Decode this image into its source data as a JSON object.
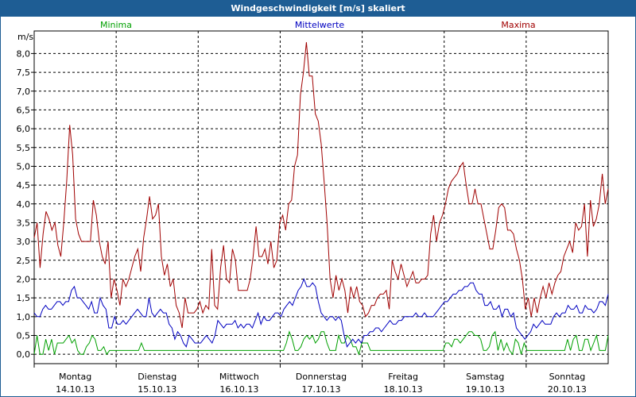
{
  "window_title": "Windgeschwindigkeit [m/s] skaliert",
  "chart_data": {
    "type": "line",
    "ylabel": "m/s",
    "ylim": [
      -0.25,
      8.6
    ],
    "yticks": [
      "0,0",
      "0,5",
      "1,0",
      "1,5",
      "2,0",
      "2,5",
      "3,0",
      "3,5",
      "4,0",
      "4,5",
      "5,0",
      "5,5",
      "6,0",
      "6,5",
      "7,0",
      "7,5",
      "8,0"
    ],
    "xlim": [
      0,
      7
    ],
    "grid": true,
    "legend_placement": "top",
    "days": [
      {
        "weekday": "Montag",
        "date": "14.10.13"
      },
      {
        "weekday": "Dienstag",
        "date": "15.10.13"
      },
      {
        "weekday": "Mittwoch",
        "date": "16.10.13"
      },
      {
        "weekday": "Donnerstag",
        "date": "17.10.13"
      },
      {
        "weekday": "Freitag",
        "date": "18.10.13"
      },
      {
        "weekday": "Samstag",
        "date": "19.10.13"
      },
      {
        "weekday": "Sonntag",
        "date": "20.10.13"
      }
    ],
    "series": [
      {
        "name": "Minima",
        "color": "#00a000",
        "values": [
          0.0,
          0.5,
          0.0,
          0.0,
          0.4,
          0.1,
          0.4,
          0.0,
          0.3,
          0.3,
          0.3,
          0.4,
          0.5,
          0.3,
          0.4,
          0.1,
          0.0,
          0.0,
          0.2,
          0.3,
          0.5,
          0.4,
          0.1,
          0.1,
          0.2,
          0.0,
          0.1,
          0.1,
          0.1,
          0.1,
          0.1,
          0.1,
          0.1,
          0.1,
          0.1,
          0.1,
          0.1,
          0.3,
          0.1,
          0.1,
          0.1,
          0.1,
          0.1,
          0.1,
          0.1,
          0.1,
          0.1,
          0.1,
          0.1,
          0.1,
          0.1,
          0.1,
          0.1,
          0.1,
          0.1,
          0.1,
          0.1,
          0.1,
          0.1,
          0.1,
          0.1,
          0.1,
          0.1,
          0.1,
          0.1,
          0.1,
          0.1,
          0.1,
          0.1,
          0.1,
          0.1,
          0.1,
          0.1,
          0.1,
          0.1,
          0.1,
          0.1,
          0.1,
          0.1,
          0.1,
          0.1,
          0.1,
          0.1,
          0.1,
          0.1,
          0.1,
          0.1,
          0.3,
          0.6,
          0.4,
          0.1,
          0.1,
          0.2,
          0.4,
          0.5,
          0.4,
          0.5,
          0.3,
          0.4,
          0.6,
          0.6,
          0.3,
          0.1,
          0.1,
          0.1,
          0.5,
          0.3,
          0.3,
          0.5,
          0.4,
          0.2,
          0.2,
          0.0,
          0.3,
          0.3,
          0.3,
          0.1,
          0.1,
          0.1,
          0.1,
          0.1,
          0.1,
          0.1,
          0.1,
          0.1,
          0.1,
          0.1,
          0.1,
          0.1,
          0.1,
          0.1,
          0.1,
          0.1,
          0.1,
          0.1,
          0.1,
          0.1,
          0.1,
          0.1,
          0.1,
          0.1,
          0.1,
          0.3,
          0.3,
          0.2,
          0.4,
          0.4,
          0.3,
          0.4,
          0.5,
          0.6,
          0.6,
          0.5,
          0.5,
          0.4,
          0.1,
          0.1,
          0.2,
          0.5,
          0.6,
          0.1,
          0.4,
          0.1,
          0.3,
          0.1,
          0.0,
          0.4,
          0.3,
          0.0,
          0.3,
          0.1,
          0.1,
          0.1,
          0.1,
          0.1,
          0.1,
          0.1,
          0.1,
          0.1,
          0.1,
          0.1,
          0.1,
          0.1,
          0.1,
          0.4,
          0.1,
          0.4,
          0.5,
          0.1,
          0.1,
          0.4,
          0.4,
          0.1,
          0.3,
          0.5,
          0.1,
          0.1,
          0.1,
          0.5
        ]
      },
      {
        "name": "Mittelwerte",
        "color": "#0000c0",
        "values": [
          1.1,
          1.0,
          1.0,
          1.2,
          1.3,
          1.2,
          1.2,
          1.3,
          1.4,
          1.4,
          1.3,
          1.4,
          1.4,
          1.7,
          1.8,
          1.5,
          1.5,
          1.4,
          1.3,
          1.2,
          1.4,
          1.1,
          1.1,
          1.5,
          1.3,
          1.2,
          0.7,
          0.7,
          1.0,
          0.8,
          0.8,
          0.9,
          0.8,
          0.9,
          1.0,
          1.1,
          1.2,
          1.1,
          1.0,
          1.0,
          1.5,
          1.1,
          1.0,
          1.1,
          1.2,
          1.1,
          1.1,
          0.8,
          0.7,
          0.4,
          0.6,
          0.5,
          0.3,
          0.2,
          0.5,
          0.4,
          0.3,
          0.3,
          0.3,
          0.4,
          0.5,
          0.4,
          0.3,
          0.5,
          0.9,
          0.8,
          0.7,
          0.8,
          0.8,
          0.8,
          0.9,
          0.7,
          0.8,
          0.7,
          0.8,
          0.8,
          0.7,
          0.9,
          1.1,
          0.8,
          1.0,
          0.9,
          0.9,
          1.0,
          1.1,
          1.1,
          1.0,
          1.2,
          1.3,
          1.4,
          1.3,
          1.5,
          1.7,
          1.8,
          2.0,
          1.8,
          1.8,
          1.9,
          1.8,
          1.4,
          1.1,
          1.0,
          0.9,
          1.0,
          1.0,
          0.9,
          1.0,
          0.9,
          0.5,
          0.2,
          0.3,
          0.4,
          0.3,
          0.4,
          0.3,
          0.5,
          0.5,
          0.6,
          0.6,
          0.7,
          0.7,
          0.6,
          0.7,
          0.8,
          0.9,
          0.8,
          0.8,
          0.9,
          0.9,
          1.0,
          1.0,
          1.0,
          1.0,
          1.1,
          1.0,
          1.0,
          1.1,
          1.0,
          1.0,
          1.0,
          1.1,
          1.2,
          1.3,
          1.4,
          1.4,
          1.5,
          1.6,
          1.6,
          1.7,
          1.7,
          1.8,
          1.8,
          1.9,
          1.9,
          1.7,
          1.6,
          1.6,
          1.3,
          1.3,
          1.4,
          1.2,
          1.2,
          1.3,
          1.0,
          1.2,
          1.2,
          1.0,
          1.1,
          0.7,
          0.6,
          0.5,
          0.4,
          0.5,
          0.6,
          0.8,
          0.7,
          0.8,
          0.9,
          0.8,
          0.8,
          0.8,
          1.0,
          1.1,
          1.0,
          1.1,
          1.1,
          1.3,
          1.2,
          1.2,
          1.3,
          1.1,
          1.1,
          1.3,
          1.2,
          1.2,
          1.1,
          1.2,
          1.4,
          1.4,
          1.3,
          1.6
        ]
      },
      {
        "name": "Maxima",
        "color": "#a00000",
        "values": [
          3.1,
          3.5,
          2.3,
          3.2,
          3.8,
          3.6,
          3.3,
          3.5,
          2.9,
          2.6,
          3.5,
          4.6,
          6.1,
          5.3,
          3.6,
          3.2,
          3.0,
          3.0,
          3.0,
          3.0,
          4.1,
          3.7,
          3.0,
          2.6,
          2.4,
          3.0,
          1.5,
          2.0,
          1.7,
          1.3,
          2.0,
          1.8,
          2.0,
          2.3,
          2.6,
          2.8,
          2.2,
          3.1,
          3.6,
          4.2,
          3.6,
          3.7,
          4.0,
          2.6,
          2.1,
          2.4,
          1.8,
          2.0,
          1.3,
          1.1,
          0.7,
          1.5,
          1.1,
          1.1,
          1.1,
          1.2,
          1.4,
          1.1,
          1.3,
          1.2,
          2.8,
          1.3,
          1.2,
          2.3,
          2.9,
          2.0,
          1.9,
          2.8,
          2.5,
          1.7,
          1.7,
          1.7,
          1.7,
          2.0,
          2.6,
          3.4,
          2.6,
          2.6,
          2.8,
          2.4,
          3.0,
          2.3,
          2.5,
          3.5,
          3.7,
          3.3,
          4.0,
          4.1,
          5.0,
          5.3,
          6.9,
          7.5,
          8.3,
          7.4,
          7.4,
          6.4,
          6.2,
          5.6,
          4.6,
          3.5,
          2.0,
          1.5,
          2.1,
          1.7,
          2.0,
          1.7,
          1.1,
          1.8,
          1.5,
          1.8,
          1.4,
          1.3,
          1.0,
          1.1,
          1.3,
          1.3,
          1.5,
          1.6,
          1.6,
          1.7,
          1.2,
          2.5,
          2.2,
          2.0,
          2.4,
          2.1,
          1.8,
          2.0,
          2.2,
          1.9,
          1.9,
          2.0,
          2.0,
          2.1,
          3.2,
          3.7,
          3.0,
          3.5,
          3.7,
          4.0,
          4.4,
          4.6,
          4.7,
          4.8,
          5.0,
          5.1,
          4.5,
          4.0,
          4.0,
          4.4,
          4.0,
          4.0,
          3.6,
          3.2,
          2.8,
          2.8,
          3.3,
          3.9,
          4.0,
          3.9,
          3.3,
          3.3,
          3.2,
          2.8,
          2.5,
          2.0,
          1.2,
          1.5,
          1.0,
          1.5,
          1.1,
          1.5,
          1.8,
          1.5,
          1.9,
          1.6,
          1.9,
          2.1,
          2.2,
          2.6,
          2.8,
          3.0,
          2.7,
          3.5,
          3.3,
          3.4,
          4.0,
          2.6,
          4.1,
          3.4,
          3.6,
          4.0,
          4.8,
          4.0,
          4.4
        ]
      }
    ]
  }
}
